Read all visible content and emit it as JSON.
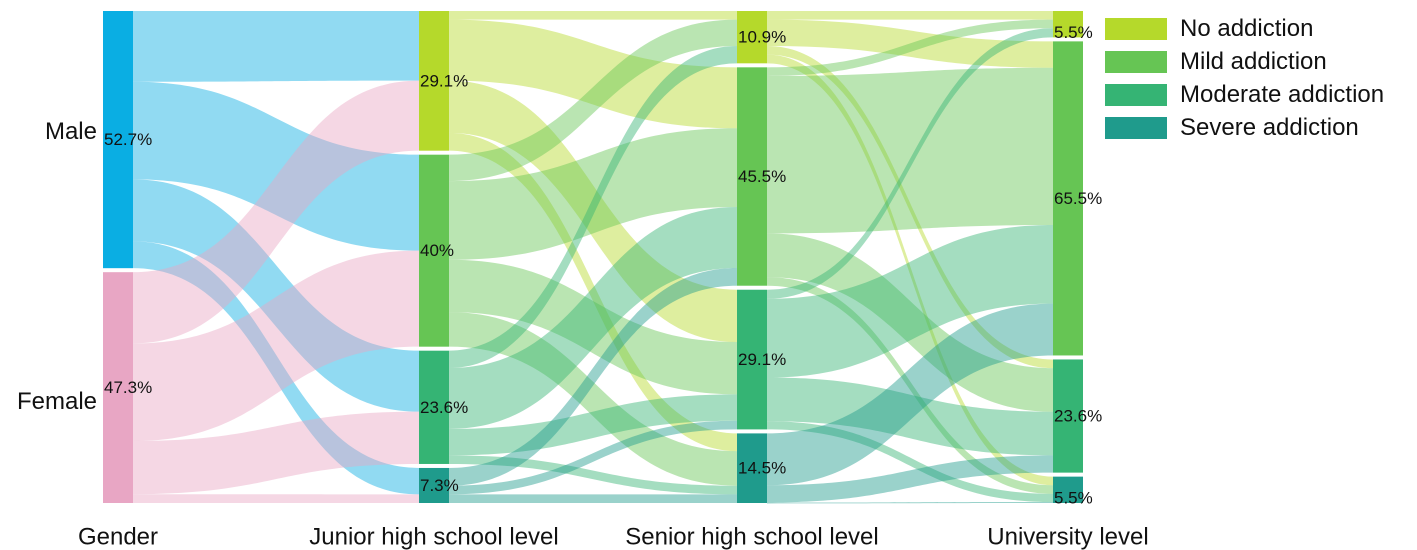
{
  "chart_data": {
    "type": "sankey",
    "title": "",
    "axis_labels": [
      "Gender",
      "Junior high school level",
      "Senior high school level",
      "University level"
    ],
    "colors": {
      "Male": "#0aaee3",
      "Female": "#e8a6c4",
      "No addiction": "#b5d92b",
      "Mild addiction": "#66c554",
      "Moderate addiction": "#35b474",
      "Severe addiction": "#1f9b8c"
    },
    "legend": [
      {
        "label": "No addiction",
        "color": "#b5d92b"
      },
      {
        "label": "Mild addiction",
        "color": "#66c554"
      },
      {
        "label": "Moderate addiction",
        "color": "#35b474"
      },
      {
        "label": "Severe addiction",
        "color": "#1f9b8c"
      }
    ],
    "stages": [
      {
        "name": "Gender",
        "nodes": [
          {
            "label": "Male",
            "value": 52.7,
            "value_label": "52.7%",
            "color": "#0aaee3"
          },
          {
            "label": "Female",
            "value": 47.3,
            "value_label": "47.3%",
            "color": "#e8a6c4"
          }
        ]
      },
      {
        "name": "Junior high school level",
        "nodes": [
          {
            "label": "No addiction",
            "value": 29.1,
            "value_label": "29.1%",
            "color": "#b5d92b"
          },
          {
            "label": "Mild addiction",
            "value": 40,
            "value_label": "40%",
            "color": "#66c554"
          },
          {
            "label": "Moderate addiction",
            "value": 23.6,
            "value_label": "23.6%",
            "color": "#35b474"
          },
          {
            "label": "Severe addiction",
            "value": 7.3,
            "value_label": "7.3%",
            "color": "#1f9b8c"
          }
        ]
      },
      {
        "name": "Senior high school level",
        "nodes": [
          {
            "label": "No addiction",
            "value": 10.9,
            "value_label": "10.9%",
            "color": "#b5d92b"
          },
          {
            "label": "Mild addiction",
            "value": 45.5,
            "value_label": "45.5%",
            "color": "#66c554"
          },
          {
            "label": "Moderate addiction",
            "value": 29.1,
            "value_label": "29.1%",
            "color": "#35b474"
          },
          {
            "label": "Severe addiction",
            "value": 14.5,
            "value_label": "14.5%",
            "color": "#1f9b8c"
          }
        ]
      },
      {
        "name": "University level",
        "nodes": [
          {
            "label": "No addiction",
            "value": 5.5,
            "value_label": "5.5%",
            "color": "#b5d92b"
          },
          {
            "label": "Mild addiction",
            "value": 65.5,
            "value_label": "65.5%",
            "color": "#66c554"
          },
          {
            "label": "Moderate addiction",
            "value": 23.6,
            "value_label": "23.6%",
            "color": "#35b474"
          },
          {
            "label": "Severe addiction",
            "value": 5.5,
            "value_label": "5.5%",
            "color": "#1f9b8c"
          }
        ]
      }
    ],
    "links": [
      [
        {
          "from": 0,
          "to": 0,
          "value": 14.5
        },
        {
          "from": 0,
          "to": 1,
          "value": 20.0
        },
        {
          "from": 0,
          "to": 2,
          "value": 12.7
        },
        {
          "from": 0,
          "to": 3,
          "value": 5.5
        },
        {
          "from": 1,
          "to": 0,
          "value": 14.6
        },
        {
          "from": 1,
          "to": 1,
          "value": 20.0
        },
        {
          "from": 1,
          "to": 2,
          "value": 10.9
        },
        {
          "from": 1,
          "to": 3,
          "value": 1.8
        }
      ],
      [
        {
          "from": 0,
          "to": 0,
          "value": 1.8
        },
        {
          "from": 0,
          "to": 1,
          "value": 12.7
        },
        {
          "from": 0,
          "to": 2,
          "value": 10.9
        },
        {
          "from": 0,
          "to": 3,
          "value": 3.7
        },
        {
          "from": 1,
          "to": 0,
          "value": 5.5
        },
        {
          "from": 1,
          "to": 1,
          "value": 16.4
        },
        {
          "from": 1,
          "to": 2,
          "value": 10.9
        },
        {
          "from": 1,
          "to": 3,
          "value": 7.2
        },
        {
          "from": 2,
          "to": 0,
          "value": 3.6
        },
        {
          "from": 2,
          "to": 1,
          "value": 12.7
        },
        {
          "from": 2,
          "to": 2,
          "value": 5.5
        },
        {
          "from": 2,
          "to": 3,
          "value": 1.8
        },
        {
          "from": 3,
          "to": 1,
          "value": 3.7
        },
        {
          "from": 3,
          "to": 2,
          "value": 1.8
        },
        {
          "from": 3,
          "to": 3,
          "value": 1.8
        }
      ],
      [
        {
          "from": 0,
          "to": 0,
          "value": 1.8
        },
        {
          "from": 0,
          "to": 1,
          "value": 5.5
        },
        {
          "from": 0,
          "to": 2,
          "value": 1.8
        },
        {
          "from": 0,
          "to": 3,
          "value": 1.8
        },
        {
          "from": 1,
          "to": 0,
          "value": 1.8
        },
        {
          "from": 1,
          "to": 1,
          "value": 32.8
        },
        {
          "from": 1,
          "to": 2,
          "value": 9.1
        },
        {
          "from": 1,
          "to": 3,
          "value": 1.8
        },
        {
          "from": 2,
          "to": 0,
          "value": 1.9
        },
        {
          "from": 2,
          "to": 1,
          "value": 16.4
        },
        {
          "from": 2,
          "to": 2,
          "value": 9.1
        },
        {
          "from": 2,
          "to": 3,
          "value": 1.7
        },
        {
          "from": 3,
          "to": 1,
          "value": 10.8
        },
        {
          "from": 3,
          "to": 2,
          "value": 3.6
        },
        {
          "from": 3,
          "to": 3,
          "value": 0.2
        }
      ]
    ]
  }
}
